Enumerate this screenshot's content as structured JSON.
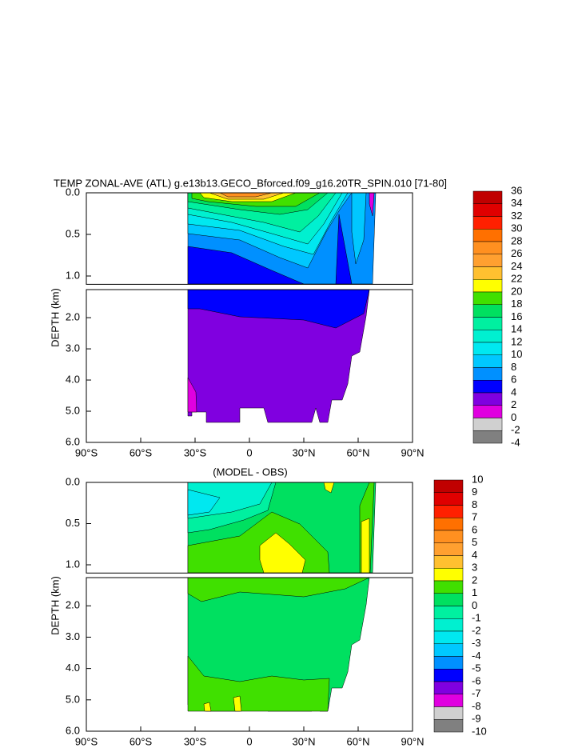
{
  "chart_data": [
    {
      "type": "contour",
      "title": "TEMP ZONAL-AVE (ATL) g.e13b13.GECO_Bforced.f09_g16.20TR_SPIN.010 [71-80]",
      "ylabel": "DEPTH (km)",
      "xlim": [
        -90,
        90
      ],
      "xticks": [
        {
          "value": -90,
          "label": "90°S"
        },
        {
          "value": -60,
          "label": "60°S"
        },
        {
          "value": -30,
          "label": "30°S"
        },
        0,
        {
          "value": 30,
          "label": "30°N"
        },
        {
          "value": 60,
          "label": "60°N"
        },
        {
          "value": 90,
          "label": "90°N"
        }
      ],
      "ylim_upper": [
        0,
        1.1
      ],
      "yticks_upper": [
        {
          "value": 0,
          "label": "0.0"
        },
        0.5,
        {
          "value": 1,
          "label": "1.0"
        }
      ],
      "ylim_lower": [
        1.1,
        6
      ],
      "yticks_lower": [
        {
          "value": 2,
          "label": "2.0"
        },
        {
          "value": 3,
          "label": "3.0"
        },
        {
          "value": 4,
          "label": "4.0"
        },
        {
          "value": 5,
          "label": "5.0"
        },
        {
          "value": 6,
          "label": "6.0"
        }
      ],
      "levels": [
        36,
        34,
        32,
        30,
        28,
        26,
        24,
        22,
        20,
        18,
        16,
        14,
        12,
        10,
        8,
        6,
        4,
        2,
        0,
        -2,
        -4
      ],
      "colors": [
        "#c00000",
        "#e00000",
        "#ff2000",
        "#ff7000",
        "#ff9020",
        "#ffa030",
        "#ffc030",
        "#ffff00",
        "#40e000",
        "#00e060",
        "#00f0a0",
        "#00f0d0",
        "#00e8f0",
        "#00c8ff",
        "#0090ff",
        "#0000ff",
        "#8000e0",
        "#e000e0",
        "#d0d0d0",
        "#808080"
      ]
    },
    {
      "type": "contour",
      "title": "(MODEL - OBS)",
      "ylabel": "DEPTH (km)",
      "xlim": [
        -90,
        90
      ],
      "xticks": [
        {
          "value": -90,
          "label": "90°S"
        },
        {
          "value": -60,
          "label": "60°S"
        },
        {
          "value": -30,
          "label": "30°S"
        },
        0,
        {
          "value": 30,
          "label": "30°N"
        },
        {
          "value": 60,
          "label": "60°N"
        },
        {
          "value": 90,
          "label": "90°N"
        }
      ],
      "ylim_upper": [
        0,
        1.1
      ],
      "yticks_upper": [
        {
          "value": 0,
          "label": "0.0"
        },
        0.5,
        {
          "value": 1,
          "label": "1.0"
        }
      ],
      "ylim_lower": [
        1.1,
        6
      ],
      "yticks_lower": [
        {
          "value": 2,
          "label": "2.0"
        },
        {
          "value": 3,
          "label": "3.0"
        },
        {
          "value": 4,
          "label": "4.0"
        },
        {
          "value": 5,
          "label": "5.0"
        },
        {
          "value": 6,
          "label": "6.0"
        }
      ],
      "levels": [
        10,
        9,
        8,
        7,
        6,
        5,
        4,
        3,
        2,
        1,
        0,
        -1,
        -2,
        -3,
        -4,
        -5,
        -6,
        -7,
        -8,
        -9,
        -10
      ],
      "colors": [
        "#c00000",
        "#e00000",
        "#ff2000",
        "#ff7000",
        "#ff9020",
        "#ffa030",
        "#ffc030",
        "#ffff00",
        "#40e000",
        "#00e060",
        "#00f0a0",
        "#00f0d0",
        "#00e8f0",
        "#00c8ff",
        "#0090ff",
        "#0000ff",
        "#8000e0",
        "#e000e0",
        "#d0d0d0",
        "#808080"
      ]
    }
  ]
}
